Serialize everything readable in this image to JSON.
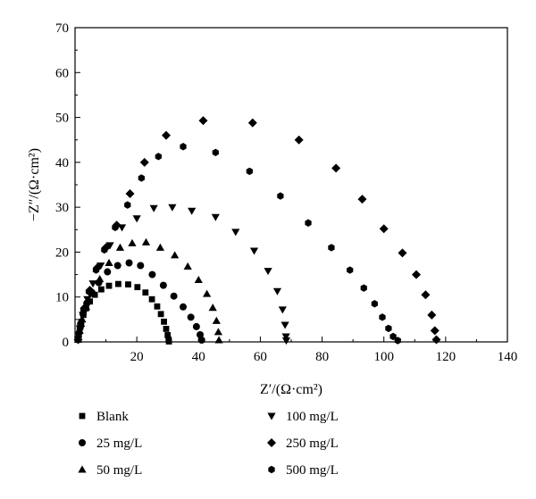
{
  "chart_data": {
    "type": "scatter",
    "xlabel": "Z′/(Ω·cm²)",
    "ylabel": "−Z″/(Ω·cm²)",
    "xlim": [
      0,
      140
    ],
    "ylim": [
      0,
      70
    ],
    "xticks": [
      20,
      40,
      60,
      80,
      100,
      120,
      140
    ],
    "yticks": [
      0,
      10,
      20,
      30,
      40,
      50,
      60,
      70
    ],
    "grid": false,
    "legend_position": "bottom",
    "series": [
      {
        "name": "Blank",
        "marker": "square",
        "points": [
          [
            1.0,
            0.5
          ],
          [
            1.2,
            1.6
          ],
          [
            1.5,
            3.0
          ],
          [
            2.0,
            4.5
          ],
          [
            2.7,
            6.0
          ],
          [
            3.6,
            7.5
          ],
          [
            4.8,
            9.0
          ],
          [
            6.4,
            10.5
          ],
          [
            8.5,
            11.7
          ],
          [
            11.0,
            12.5
          ],
          [
            14.0,
            12.9
          ],
          [
            17.2,
            12.8
          ],
          [
            20.2,
            12.2
          ],
          [
            22.8,
            11.0
          ],
          [
            24.9,
            9.5
          ],
          [
            26.6,
            7.9
          ],
          [
            27.8,
            6.2
          ],
          [
            28.8,
            4.5
          ],
          [
            29.5,
            2.9
          ],
          [
            30.0,
            1.5
          ],
          [
            30.3,
            0.5
          ],
          [
            30.4,
            0.1
          ]
        ]
      },
      {
        "name": "25 mg/L",
        "marker": "circle",
        "points": [
          [
            1.0,
            0.5
          ],
          [
            1.3,
            2.0
          ],
          [
            1.8,
            4.0
          ],
          [
            2.6,
            6.2
          ],
          [
            3.8,
            8.6
          ],
          [
            5.5,
            11.0
          ],
          [
            7.7,
            13.2
          ],
          [
            10.5,
            15.6
          ],
          [
            13.8,
            17.0
          ],
          [
            17.5,
            17.6
          ],
          [
            21.2,
            17.0
          ],
          [
            25.0,
            15.0
          ],
          [
            28.6,
            12.6
          ],
          [
            32.0,
            10.2
          ],
          [
            35.0,
            7.8
          ],
          [
            37.5,
            5.5
          ],
          [
            39.3,
            3.4
          ],
          [
            40.5,
            1.6
          ],
          [
            41.0,
            0.4
          ]
        ]
      },
      {
        "name": "50 mg/L",
        "marker": "triangle-up",
        "points": [
          [
            1.0,
            0.5
          ],
          [
            1.5,
            2.5
          ],
          [
            2.3,
            5.0
          ],
          [
            3.6,
            7.8
          ],
          [
            5.5,
            10.8
          ],
          [
            8.0,
            14.0
          ],
          [
            11.0,
            17.6
          ],
          [
            14.6,
            21.0
          ],
          [
            18.5,
            22.0
          ],
          [
            23.0,
            22.2
          ],
          [
            27.6,
            21.0
          ],
          [
            32.3,
            19.3
          ],
          [
            36.5,
            16.8
          ],
          [
            40.0,
            13.8
          ],
          [
            42.7,
            10.7
          ],
          [
            44.6,
            7.6
          ],
          [
            45.8,
            4.7
          ],
          [
            46.4,
            2.2
          ],
          [
            46.6,
            0.4
          ]
        ]
      },
      {
        "name": "100 mg/L",
        "marker": "triangle-down",
        "points": [
          [
            1.0,
            0.5
          ],
          [
            1.6,
            3.0
          ],
          [
            2.5,
            6.0
          ],
          [
            4.0,
            9.5
          ],
          [
            5.8,
            13.0
          ],
          [
            8.3,
            17.0
          ],
          [
            11.3,
            21.5
          ],
          [
            15.2,
            25.5
          ],
          [
            20.0,
            27.5
          ],
          [
            25.5,
            29.8
          ],
          [
            31.5,
            30.0
          ],
          [
            37.8,
            29.2
          ],
          [
            45.5,
            27.8
          ],
          [
            52.0,
            24.5
          ],
          [
            58.0,
            20.3
          ],
          [
            62.5,
            15.8
          ],
          [
            65.5,
            11.3
          ],
          [
            67.2,
            7.2
          ],
          [
            68.0,
            3.8
          ],
          [
            68.3,
            1.2
          ],
          [
            68.4,
            0.3
          ]
        ]
      },
      {
        "name": "250 mg/L",
        "marker": "diamond",
        "points": [
          [
            1.0,
            0.5
          ],
          [
            1.8,
            3.5
          ],
          [
            3.0,
            7.5
          ],
          [
            4.8,
            11.5
          ],
          [
            7.2,
            16.5
          ],
          [
            10.0,
            21.0
          ],
          [
            13.5,
            26.0
          ],
          [
            17.8,
            33.0
          ],
          [
            22.5,
            40.0
          ],
          [
            29.5,
            46.0
          ],
          [
            41.5,
            49.3
          ],
          [
            57.5,
            48.8
          ],
          [
            72.5,
            45.0
          ],
          [
            84.5,
            38.7
          ],
          [
            93.0,
            31.8
          ],
          [
            100.0,
            25.2
          ],
          [
            106.0,
            19.8
          ],
          [
            110.5,
            15.0
          ],
          [
            113.5,
            10.5
          ],
          [
            115.5,
            6.0
          ],
          [
            116.5,
            2.5
          ],
          [
            117.0,
            0.5
          ]
        ]
      },
      {
        "name": "500 mg/L",
        "marker": "hexagon",
        "points": [
          [
            1.0,
            0.5
          ],
          [
            1.7,
            3.2
          ],
          [
            2.8,
            7.0
          ],
          [
            4.5,
            11.2
          ],
          [
            6.8,
            16.0
          ],
          [
            9.5,
            20.5
          ],
          [
            13.0,
            25.5
          ],
          [
            17.0,
            30.5
          ],
          [
            21.5,
            36.5
          ],
          [
            27.0,
            41.3
          ],
          [
            35.0,
            43.5
          ],
          [
            45.5,
            42.2
          ],
          [
            56.5,
            38.0
          ],
          [
            66.5,
            32.5
          ],
          [
            75.5,
            26.5
          ],
          [
            83.0,
            21.0
          ],
          [
            89.0,
            16.0
          ],
          [
            93.5,
            12.0
          ],
          [
            97.0,
            8.5
          ],
          [
            99.5,
            5.5
          ],
          [
            101.5,
            3.0
          ],
          [
            103.0,
            1.2
          ],
          [
            104.5,
            0.3
          ]
        ]
      }
    ]
  }
}
